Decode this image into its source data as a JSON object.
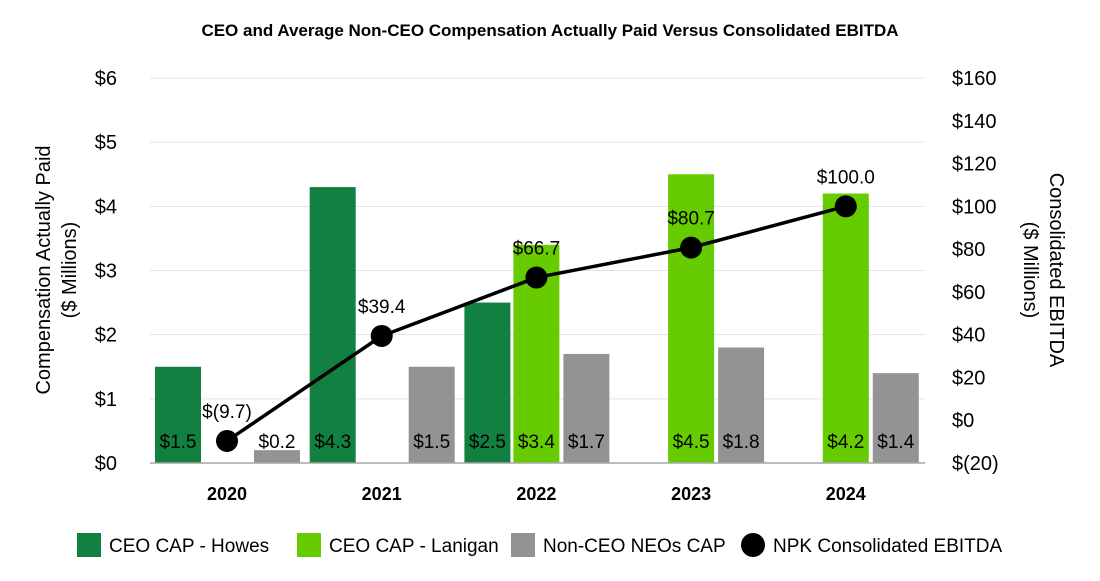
{
  "chart_data": {
    "type": "bar",
    "title": "CEO and Average Non-CEO Compensation Actually Paid Versus Consolidated EBITDA",
    "categories": [
      "2020",
      "2021",
      "2022",
      "2023",
      "2024"
    ],
    "ylabel": [
      "Compensation Actually Paid",
      "($ Millions)"
    ],
    "y2label": [
      "Consolidated EBITDA",
      "($ Millions)"
    ],
    "ylim": [
      0,
      6
    ],
    "y2lim": [
      -20,
      160
    ],
    "yticks": [
      0,
      1,
      2,
      3,
      4,
      5,
      6
    ],
    "ytick_labels": [
      "$0",
      "$1",
      "$2",
      "$3",
      "$4",
      "$5",
      "$6"
    ],
    "y2ticks": [
      -20,
      0,
      20,
      40,
      60,
      80,
      100,
      120,
      140,
      160
    ],
    "y2tick_labels": [
      "$(20)",
      "$0",
      "$20",
      "$40",
      "$60",
      "$80",
      "$100",
      "$120",
      "$140",
      "$160"
    ],
    "grid": true,
    "legend_position": "bottom",
    "series": [
      {
        "name": "CEO CAP - Howes",
        "type": "bar",
        "color": "#128040",
        "values": [
          1.5,
          4.3,
          2.5,
          null,
          null
        ],
        "labels": [
          "$1.5",
          "$4.3",
          "$2.5",
          "",
          ""
        ]
      },
      {
        "name": "CEO CAP - Lanigan",
        "type": "bar",
        "color": "#66cc00",
        "values": [
          null,
          null,
          3.4,
          4.5,
          4.2
        ],
        "labels": [
          "",
          "",
          "$3.4",
          "$4.5",
          "$4.2"
        ]
      },
      {
        "name": "Non-CEO NEOs CAP",
        "type": "bar",
        "color": "#939393",
        "values": [
          0.2,
          1.5,
          1.7,
          1.8,
          1.4
        ],
        "labels": [
          "$0.2",
          "$1.5",
          "$1.7",
          "$1.8",
          "$1.4"
        ]
      },
      {
        "name": "NPK Consolidated EBITDA",
        "type": "line",
        "axis": "right",
        "color": "#000000",
        "values": [
          -9.7,
          39.4,
          66.7,
          80.7,
          100.0
        ],
        "labels": [
          "$(9.7)",
          "$39.4",
          "$66.7",
          "$80.7",
          "$100.0"
        ]
      }
    ]
  }
}
